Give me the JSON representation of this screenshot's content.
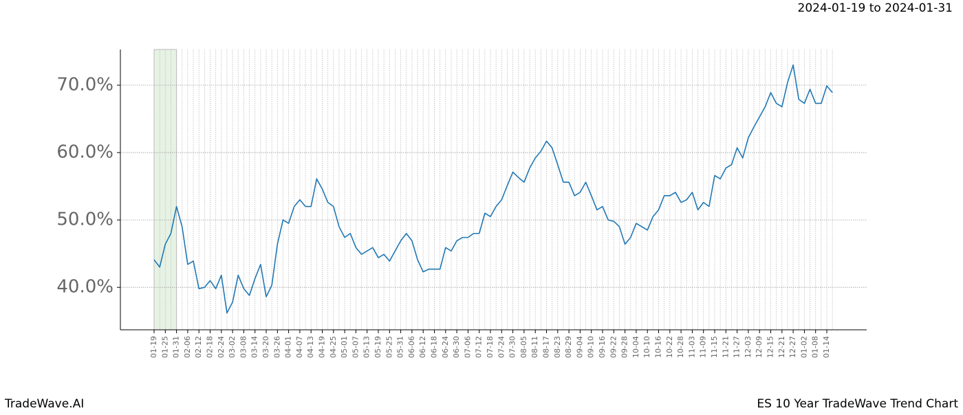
{
  "header": {
    "date_range": "2024-01-19 to 2024-01-31"
  },
  "footer": {
    "brand": "TradeWave.AI",
    "chart_name": "ES 10 Year TradeWave Trend Chart"
  },
  "chart_data": {
    "type": "line",
    "categories": [
      "01-19",
      null,
      "01-25",
      null,
      "01-31",
      null,
      "02-06",
      null,
      "02-12",
      null,
      "02-18",
      null,
      "02-24",
      null,
      "03-02",
      null,
      "03-08",
      null,
      "03-14",
      null,
      "03-20",
      null,
      "03-26",
      null,
      "04-01",
      null,
      "04-07",
      null,
      "04-13",
      null,
      "04-19",
      null,
      "04-25",
      null,
      "05-01",
      null,
      "05-07",
      null,
      "05-13",
      null,
      "05-19",
      null,
      "05-25",
      null,
      "05-31",
      null,
      "06-06",
      null,
      "06-12",
      null,
      "06-18",
      null,
      "06-24",
      null,
      "06-30",
      null,
      "07-06",
      null,
      "07-12",
      null,
      "07-18",
      null,
      "07-24",
      null,
      "07-30",
      null,
      "08-05",
      null,
      "08-11",
      null,
      "08-17",
      null,
      "08-23",
      null,
      "08-29",
      null,
      "09-04",
      null,
      "09-10",
      null,
      "09-16",
      null,
      "09-22",
      null,
      "09-28",
      null,
      "10-04",
      null,
      "10-10",
      null,
      "10-16",
      null,
      "10-22",
      null,
      "10-28",
      null,
      "11-03",
      null,
      "11-09",
      null,
      "11-15",
      null,
      "11-21",
      null,
      "11-27",
      null,
      "12-03",
      null,
      "12-09",
      null,
      "12-15",
      null,
      "12-21",
      null,
      "12-27",
      null,
      "01-02",
      null,
      "01-08",
      null,
      "01-14",
      null
    ],
    "values": [
      44.1,
      43,
      46.4,
      48,
      52,
      49,
      43.4,
      43.9,
      39.8,
      40,
      41,
      39.8,
      41.8,
      36.2,
      37.8,
      41.8,
      39.8,
      38.8,
      41.3,
      43.4,
      38.6,
      40.3,
      46.4,
      50,
      49.5,
      52,
      53,
      52,
      52,
      56.1,
      54.6,
      52.6,
      52,
      49,
      47.4,
      48,
      45.9,
      44.9,
      45.4,
      45.9,
      44.4,
      44.9,
      43.9,
      45.4,
      46.9,
      48,
      46.9,
      44.1,
      42.3,
      42.7,
      42.7,
      42.7,
      45.9,
      45.4,
      46.9,
      47.4,
      47.4,
      48,
      48,
      51,
      50.5,
      52,
      53,
      55.1,
      57.1,
      56.3,
      55.6,
      57.7,
      59.2,
      60.2,
      61.7,
      60.7,
      58.2,
      55.6,
      55.6,
      53.6,
      54.1,
      55.6,
      53.6,
      51.5,
      52,
      50,
      49.8,
      49,
      46.4,
      47.4,
      49.5,
      49,
      48.5,
      50.5,
      51.5,
      53.6,
      53.6,
      54.1,
      52.6,
      53,
      54.1,
      51.5,
      52.6,
      52,
      56.6,
      56.1,
      57.7,
      58.2,
      60.7,
      59.2,
      62.2,
      63.8,
      65.3,
      66.8,
      68.9,
      67.3,
      66.8,
      70.4,
      73,
      67.9,
      67.3,
      69.4,
      67.3,
      67.3,
      69.9,
      68.9
    ],
    "color": "#1f77b4",
    "ylim": [
      33.7,
      75.3
    ],
    "yticks": [
      {
        "value": 40,
        "label": "40.0%"
      },
      {
        "value": 50,
        "label": "50.0%"
      },
      {
        "value": 60,
        "label": "60.0%"
      },
      {
        "value": 70,
        "label": "70.0%"
      }
    ],
    "grid": true,
    "shade": {
      "from": 0,
      "to": 4,
      "color": "#e6f2e3"
    }
  }
}
